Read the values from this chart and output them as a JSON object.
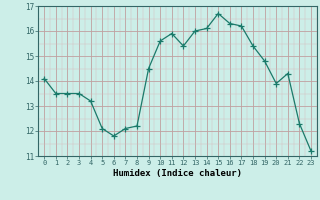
{
  "x": [
    0,
    1,
    2,
    3,
    4,
    5,
    6,
    7,
    8,
    9,
    10,
    11,
    12,
    13,
    14,
    15,
    16,
    17,
    18,
    19,
    20,
    21,
    22,
    23
  ],
  "y": [
    14.1,
    13.5,
    13.5,
    13.5,
    13.2,
    12.1,
    11.8,
    12.1,
    12.2,
    14.5,
    15.6,
    15.9,
    15.4,
    16.0,
    16.1,
    16.7,
    16.3,
    16.2,
    15.4,
    14.8,
    13.9,
    14.3,
    12.3,
    11.2
  ],
  "xlabel": "Humidex (Indice chaleur)",
  "xlim": [
    -0.5,
    23.5
  ],
  "ylim": [
    11,
    17
  ],
  "yticks": [
    11,
    12,
    13,
    14,
    15,
    16,
    17
  ],
  "xticks": [
    0,
    1,
    2,
    3,
    4,
    5,
    6,
    7,
    8,
    9,
    10,
    11,
    12,
    13,
    14,
    15,
    16,
    17,
    18,
    19,
    20,
    21,
    22,
    23
  ],
  "line_color": "#1a7a6a",
  "marker": "+",
  "marker_size": 4,
  "bg_color": "#cceee8",
  "grid_color_major": "#c0a0a0",
  "grid_color_minor": "#d8b8b8",
  "axis_color": "#336666",
  "tick_color": "#336666"
}
